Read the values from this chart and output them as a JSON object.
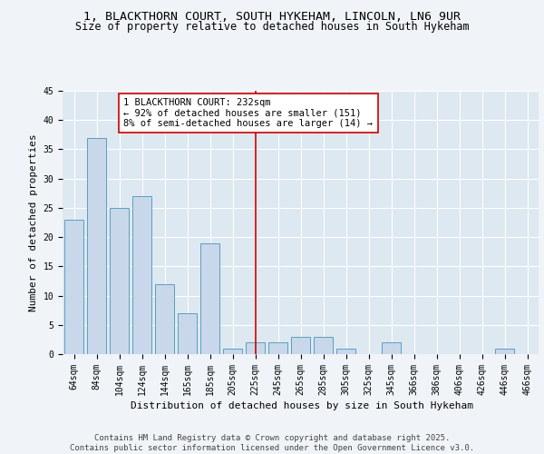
{
  "title_line1": "1, BLACKTHORN COURT, SOUTH HYKEHAM, LINCOLN, LN6 9UR",
  "title_line2": "Size of property relative to detached houses in South Hykeham",
  "xlabel": "Distribution of detached houses by size in South Hykeham",
  "ylabel": "Number of detached properties",
  "categories": [
    "64sqm",
    "84sqm",
    "104sqm",
    "124sqm",
    "144sqm",
    "165sqm",
    "185sqm",
    "205sqm",
    "225sqm",
    "245sqm",
    "265sqm",
    "285sqm",
    "305sqm",
    "325sqm",
    "345sqm",
    "366sqm",
    "386sqm",
    "406sqm",
    "426sqm",
    "446sqm",
    "466sqm"
  ],
  "values": [
    23,
    37,
    25,
    27,
    12,
    7,
    19,
    1,
    2,
    2,
    3,
    3,
    1,
    0,
    2,
    0,
    0,
    0,
    0,
    1,
    0
  ],
  "bar_color": "#c8d8ea",
  "bar_edge_color": "#5b9fc0",
  "vline_x_index": 8,
  "vline_color": "#cc0000",
  "annotation_text": "1 BLACKTHORN COURT: 232sqm\n← 92% of detached houses are smaller (151)\n8% of semi-detached houses are larger (14) →",
  "annotation_box_color": "#ffffff",
  "annotation_box_edge": "#cc0000",
  "ylim": [
    0,
    45
  ],
  "yticks": [
    0,
    5,
    10,
    15,
    20,
    25,
    30,
    35,
    40,
    45
  ],
  "plot_bg_color": "#dde8f0",
  "fig_bg_color": "#f0f4f8",
  "grid_color": "#ffffff",
  "footer_text": "Contains HM Land Registry data © Crown copyright and database right 2025.\nContains public sector information licensed under the Open Government Licence v3.0.",
  "title_fontsize": 9.5,
  "subtitle_fontsize": 8.5,
  "axis_label_fontsize": 8,
  "tick_fontsize": 7,
  "annotation_fontsize": 7.5,
  "footer_fontsize": 6.5
}
